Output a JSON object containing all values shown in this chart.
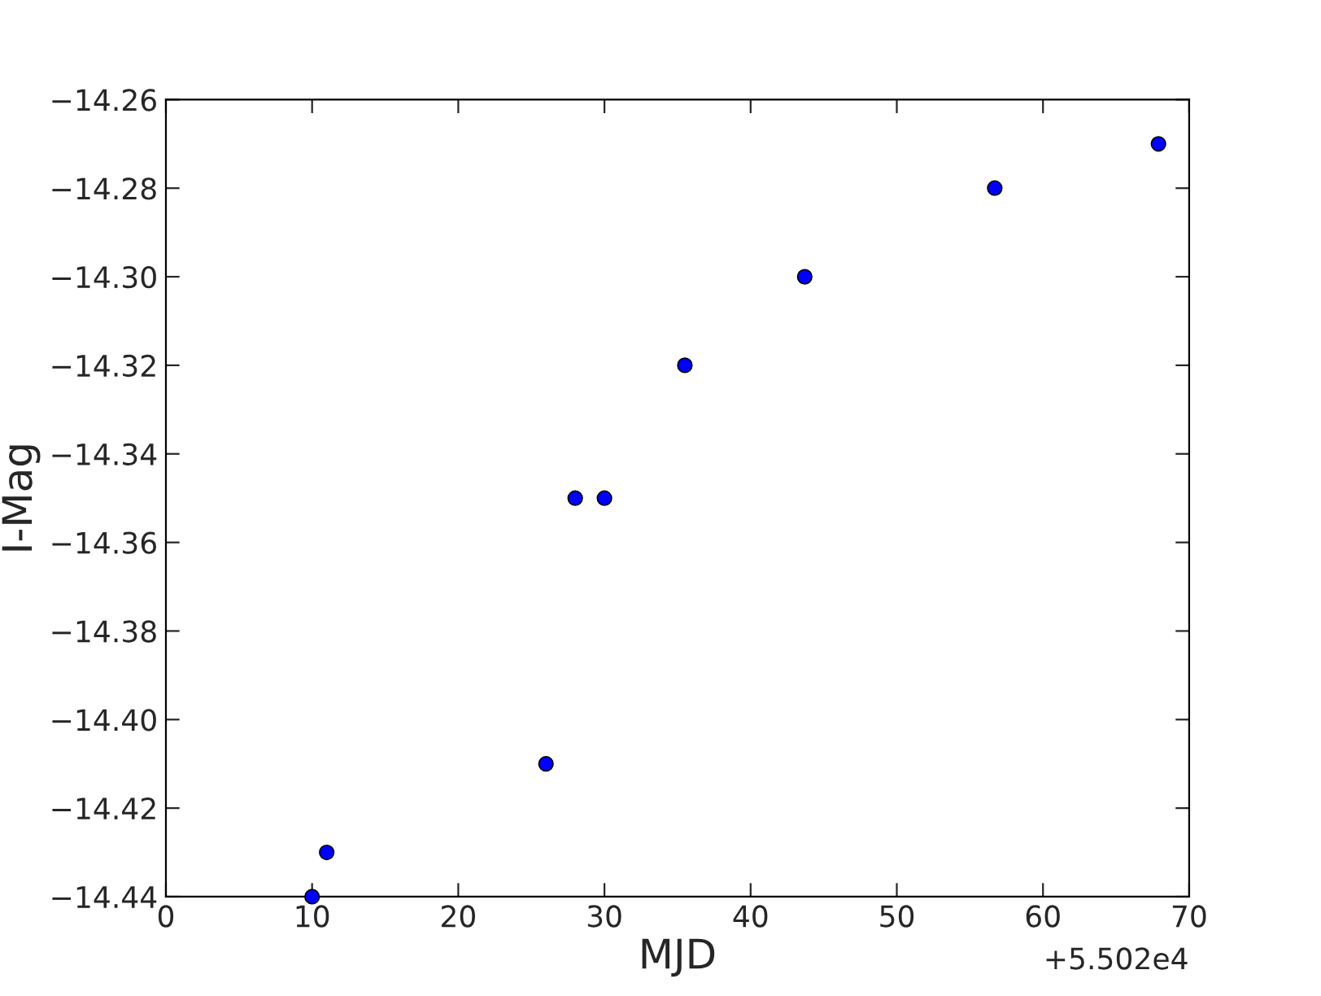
{
  "chart_data": {
    "type": "scatter",
    "xlabel": "MJD",
    "ylabel": "I-Mag",
    "x": [
      10,
      11,
      26,
      28,
      30,
      35.5,
      43.7,
      56.7,
      67.9
    ],
    "values": [
      -14.44,
      -14.43,
      -14.41,
      -14.35,
      -14.35,
      -14.32,
      -14.3,
      -14.28,
      -14.27
    ],
    "color": "#0000ff",
    "marker": "circle",
    "grid": false,
    "legend": false,
    "xlim": [
      0,
      70
    ],
    "xticks": [
      0,
      10,
      20,
      30,
      40,
      50,
      60,
      70
    ],
    "ylim": [
      -14.44,
      -14.26
    ],
    "yticks": [
      {
        "value": -14.44,
        "label": "−14.44"
      },
      {
        "value": -14.42,
        "label": "−14.42"
      },
      {
        "value": -14.4,
        "label": "−14.40"
      },
      {
        "value": -14.38,
        "label": "−14.38"
      },
      {
        "value": -14.36,
        "label": "−14.36"
      },
      {
        "value": -14.34,
        "label": "−14.34"
      },
      {
        "value": -14.32,
        "label": "−14.32"
      },
      {
        "value": -14.3,
        "label": "−14.30"
      },
      {
        "value": -14.28,
        "label": "−14.28"
      },
      {
        "value": -14.26,
        "label": "−14.26"
      }
    ],
    "annotations": [
      "+5.502e4"
    ]
  }
}
